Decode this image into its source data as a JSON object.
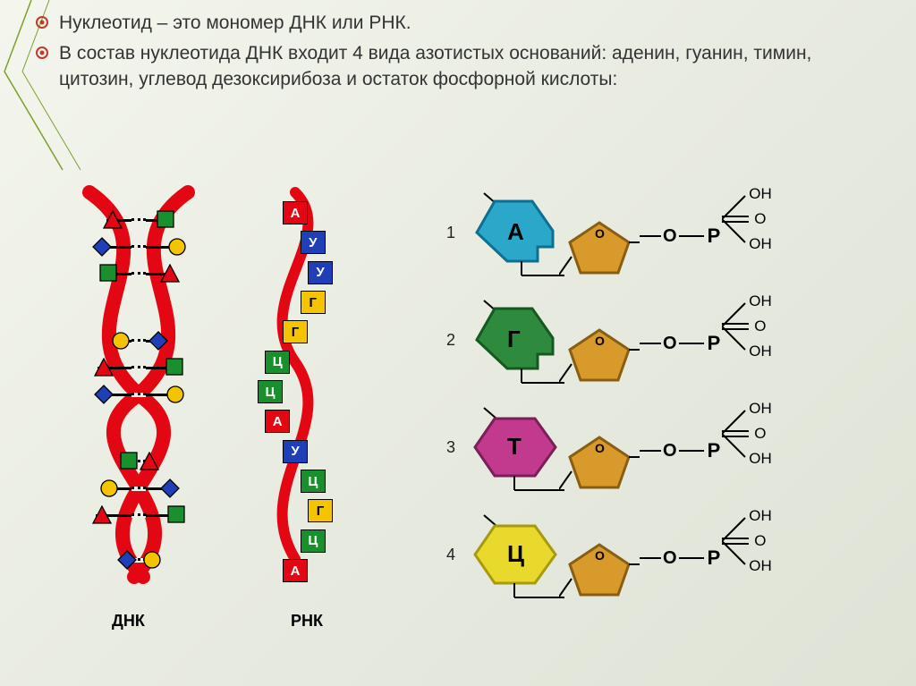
{
  "bullets": [
    "Нуклеотид – это мономер ДНК или РНК.",
    "В состав нуклеотида ДНК входит 4 вида азотистых оснований: аденин, гуанин, тимин, цитозин, углевод дезоксирибоза и остаток фосфорной кислоты:"
  ],
  "bullet_color": "#c0392b",
  "dna_label": "ДНК",
  "rna_label": "РНК",
  "dna_helix": {
    "strand_color": "#e30613",
    "bases": [
      {
        "shape": "tri",
        "fill": "#e30613"
      },
      {
        "shape": "diam",
        "fill": "#1f3fb8"
      },
      {
        "shape": "sq",
        "fill": "#1a8f2d"
      },
      {
        "shape": "circ",
        "fill": "#f5c400"
      }
    ]
  },
  "rna_strand": {
    "wave_color": "#e30613",
    "cells": [
      {
        "label": "А",
        "fill": "#e30613",
        "text": "#fff"
      },
      {
        "label": "У",
        "fill": "#1f3fb8",
        "text": "#fff"
      },
      {
        "label": "У",
        "fill": "#1f3fb8",
        "text": "#fff"
      },
      {
        "label": "Г",
        "fill": "#f5c400",
        "text": "#000"
      },
      {
        "label": "Г",
        "fill": "#f5c400",
        "text": "#000"
      },
      {
        "label": "Ц",
        "fill": "#1a8f2d",
        "text": "#fff"
      },
      {
        "label": "Ц",
        "fill": "#1a8f2d",
        "text": "#fff"
      },
      {
        "label": "А",
        "fill": "#e30613",
        "text": "#fff"
      },
      {
        "label": "У",
        "fill": "#1f3fb8",
        "text": "#fff"
      },
      {
        "label": "Ц",
        "fill": "#1a8f2d",
        "text": "#fff"
      },
      {
        "label": "Г",
        "fill": "#f5c400",
        "text": "#000"
      },
      {
        "label": "Ц",
        "fill": "#1a8f2d",
        "text": "#fff"
      },
      {
        "label": "А",
        "fill": "#e30613",
        "text": "#fff"
      }
    ]
  },
  "nucleotides": [
    {
      "num": "1",
      "letter": "А",
      "shape": "hex-notch",
      "fill": "#2aa7c9",
      "stroke": "#0f6f8f"
    },
    {
      "num": "2",
      "letter": "Г",
      "shape": "hex-notch",
      "fill": "#2e8b3d",
      "stroke": "#145a1f"
    },
    {
      "num": "3",
      "letter": "Т",
      "shape": "hex",
      "fill": "#c23a8e",
      "stroke": "#7a1f59"
    },
    {
      "num": "4",
      "letter": "Ц",
      "shape": "hex",
      "fill": "#e8d92c",
      "stroke": "#a79a0e"
    }
  ],
  "sugar": {
    "fill": "#d79a2b",
    "stroke": "#8a5e12",
    "o_label": "O"
  },
  "phosphate": {
    "link_O": "O",
    "P": "P",
    "tails": [
      "OH",
      "O",
      "OH"
    ]
  },
  "accent_stroke": "#7aa02c",
  "background": "#eef0e8"
}
